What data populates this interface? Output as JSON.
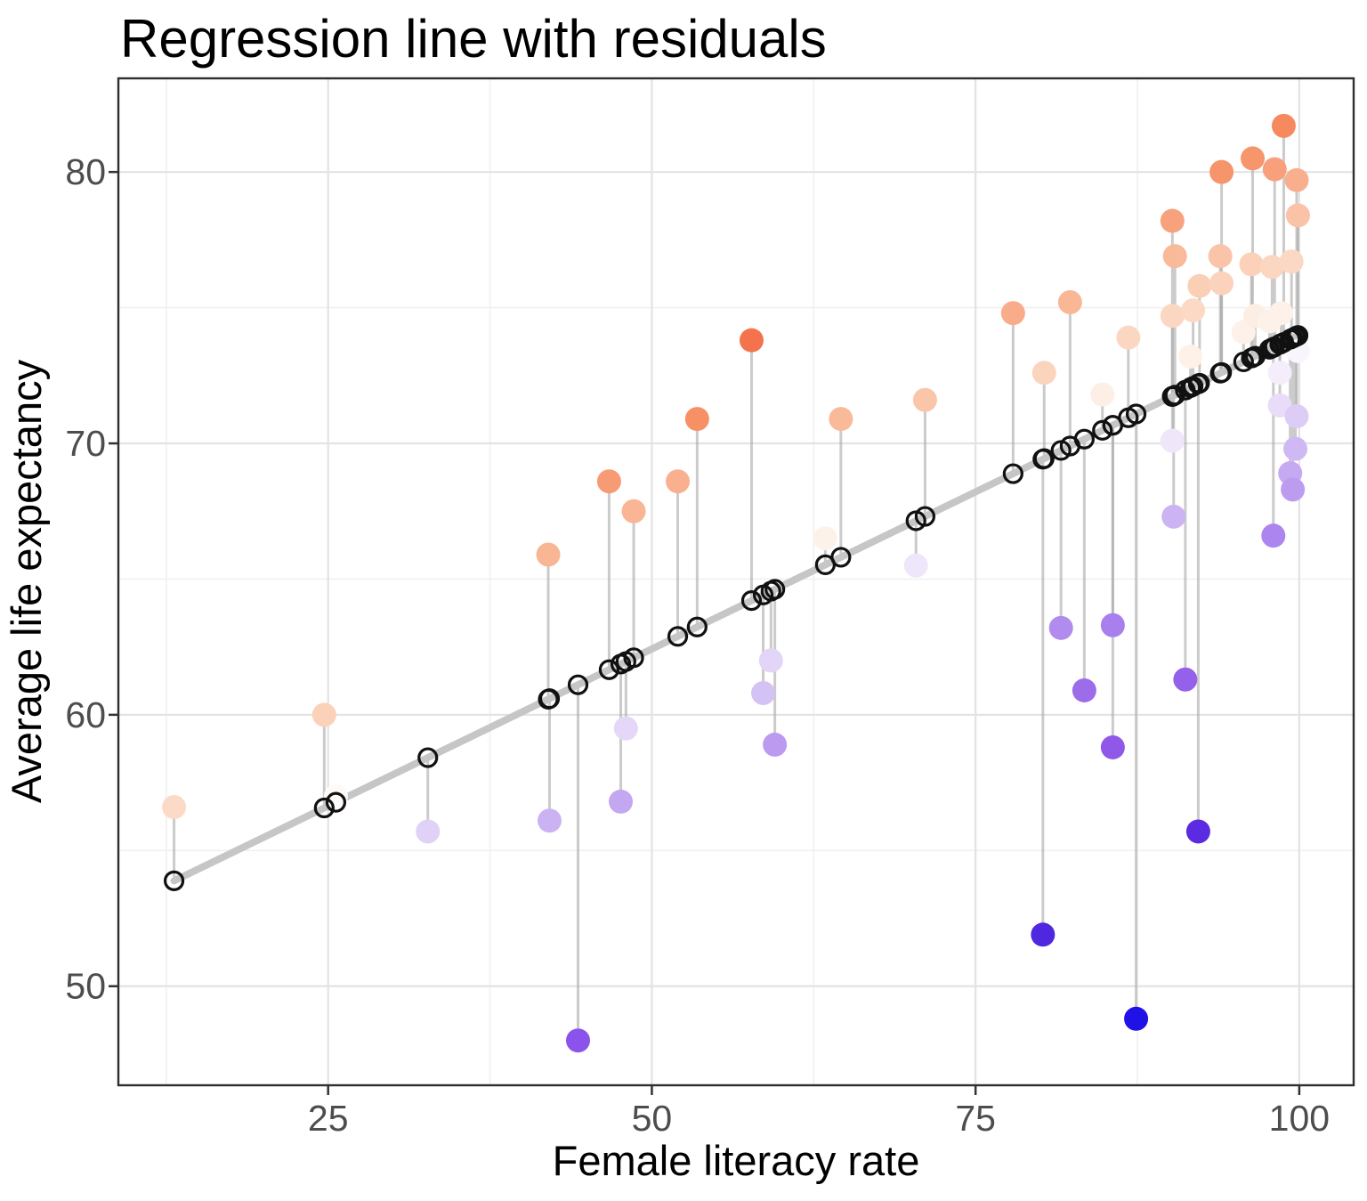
{
  "title": "Regression line with residuals",
  "chart_data": {
    "type": "scatter",
    "title": "Regression line with residuals",
    "xlabel": "Female literacy rate",
    "ylabel": "Average life expectancy",
    "x_ticks": [
      25,
      50,
      75,
      100
    ],
    "y_ticks": [
      50,
      60,
      70,
      80
    ],
    "x_minor": [
      12.5,
      37.5,
      62.5,
      87.5
    ],
    "y_minor": [
      55,
      65,
      75
    ],
    "xlim": [
      8.8,
      104.2
    ],
    "ylim": [
      46.35,
      83.45
    ],
    "grid": true,
    "legend": "none",
    "regression": {
      "intercept": 50.85,
      "slope": 0.2315,
      "x_start": 13.1,
      "x_end": 100.3
    },
    "colors": {
      "regression_line": "#c6c6c6",
      "residual_segment": "#a8a8a8",
      "fitted_circle_stroke": "#111111",
      "grid_major": "#e3e3e3",
      "grid_minor": "#f0f0f0",
      "panel_border": "#2e2e2e",
      "tick_label": "#4d4d4d",
      "text": "#000000"
    },
    "residual_color_stops": [
      [
        -22.3,
        "#2012e6"
      ],
      [
        -16.5,
        "#5a2be0"
      ],
      [
        -13.1,
        "#8b52ec"
      ],
      [
        -11.9,
        "#8f58e9"
      ],
      [
        -10.7,
        "#9560ea"
      ],
      [
        -9.3,
        "#9c6ceb"
      ],
      [
        -7.4,
        "#a87eed"
      ],
      [
        -6.5,
        "#b28cee"
      ],
      [
        -5.7,
        "#bb9af0"
      ],
      [
        -5.1,
        "#c3a6f1"
      ],
      [
        -4.5,
        "#cbb2f3"
      ],
      [
        -3.6,
        "#d5c2f5"
      ],
      [
        -2.7,
        "#e0d1f7"
      ],
      [
        -2.3,
        "#e7dbf8"
      ],
      [
        -1.6,
        "#efe7fa"
      ],
      [
        -1.0,
        "#f4eefb"
      ],
      [
        0.0,
        "#ffffff"
      ],
      [
        0.2,
        "#fefaf7"
      ],
      [
        1.0,
        "#fdf2ea"
      ],
      [
        1.5,
        "#fdeee4"
      ],
      [
        2.8,
        "#fbd9c5"
      ],
      [
        3.5,
        "#fbd0b8"
      ],
      [
        4.4,
        "#fac3a7"
      ],
      [
        5.1,
        "#f9ba9a"
      ],
      [
        5.8,
        "#f9ae8c"
      ],
      [
        6.5,
        "#f8a17c"
      ],
      [
        7.0,
        "#f79a73"
      ],
      [
        7.7,
        "#f68f64"
      ],
      [
        8.1,
        "#f6885c"
      ],
      [
        9.6,
        "#f4734d"
      ]
    ],
    "points": [
      {
        "x": 13.1,
        "y": 56.6
      },
      {
        "x": 24.7,
        "y": 60.0
      },
      {
        "x": 25.6,
        "y": 57.0
      },
      {
        "x": 32.7,
        "y": 55.7
      },
      {
        "x": 42.0,
        "y": 65.9
      },
      {
        "x": 42.1,
        "y": 56.1
      },
      {
        "x": 44.3,
        "y": 48.0
      },
      {
        "x": 46.7,
        "y": 68.6
      },
      {
        "x": 47.6,
        "y": 56.8
      },
      {
        "x": 48.0,
        "y": 59.5
      },
      {
        "x": 48.6,
        "y": 67.5
      },
      {
        "x": 52.0,
        "y": 68.6
      },
      {
        "x": 53.5,
        "y": 70.9
      },
      {
        "x": 57.7,
        "y": 73.8
      },
      {
        "x": 58.6,
        "y": 60.8
      },
      {
        "x": 59.2,
        "y": 62.0
      },
      {
        "x": 59.5,
        "y": 58.9
      },
      {
        "x": 63.4,
        "y": 66.5
      },
      {
        "x": 64.6,
        "y": 70.9
      },
      {
        "x": 70.4,
        "y": 65.5
      },
      {
        "x": 71.1,
        "y": 71.6
      },
      {
        "x": 77.9,
        "y": 74.8
      },
      {
        "x": 80.2,
        "y": 51.9
      },
      {
        "x": 80.3,
        "y": 72.6
      },
      {
        "x": 81.6,
        "y": 63.2
      },
      {
        "x": 82.3,
        "y": 75.2
      },
      {
        "x": 83.4,
        "y": 60.9
      },
      {
        "x": 84.8,
        "y": 71.8
      },
      {
        "x": 85.6,
        "y": 63.3
      },
      {
        "x": 85.6,
        "y": 58.8
      },
      {
        "x": 86.8,
        "y": 73.9
      },
      {
        "x": 87.4,
        "y": 48.8
      },
      {
        "x": 90.2,
        "y": 78.2
      },
      {
        "x": 90.4,
        "y": 76.9
      },
      {
        "x": 90.2,
        "y": 74.7
      },
      {
        "x": 90.2,
        "y": 70.1
      },
      {
        "x": 90.3,
        "y": 67.3
      },
      {
        "x": 91.2,
        "y": 61.3
      },
      {
        "x": 91.6,
        "y": 73.2
      },
      {
        "x": 91.8,
        "y": 74.9
      },
      {
        "x": 92.2,
        "y": 55.7
      },
      {
        "x": 92.3,
        "y": 75.8
      },
      {
        "x": 93.9,
        "y": 76.9
      },
      {
        "x": 94.0,
        "y": 80.0
      },
      {
        "x": 94.0,
        "y": 75.9
      },
      {
        "x": 95.7,
        "y": 74.1
      },
      {
        "x": 96.3,
        "y": 76.6
      },
      {
        "x": 96.4,
        "y": 80.5
      },
      {
        "x": 96.6,
        "y": 74.7
      },
      {
        "x": 97.7,
        "y": 74.5
      },
      {
        "x": 97.9,
        "y": 76.5
      },
      {
        "x": 98.0,
        "y": 66.6
      },
      {
        "x": 98.1,
        "y": 80.1
      },
      {
        "x": 98.5,
        "y": 72.6
      },
      {
        "x": 98.5,
        "y": 71.4
      },
      {
        "x": 98.6,
        "y": 74.8
      },
      {
        "x": 98.8,
        "y": 81.7
      },
      {
        "x": 99.3,
        "y": 68.9
      },
      {
        "x": 99.4,
        "y": 76.7
      },
      {
        "x": 99.5,
        "y": 68.3
      },
      {
        "x": 99.7,
        "y": 69.8
      },
      {
        "x": 99.8,
        "y": 79.7
      },
      {
        "x": 99.8,
        "y": 71.0
      },
      {
        "x": 99.9,
        "y": 78.4
      },
      {
        "x": 99.9,
        "y": 73.4
      }
    ]
  }
}
